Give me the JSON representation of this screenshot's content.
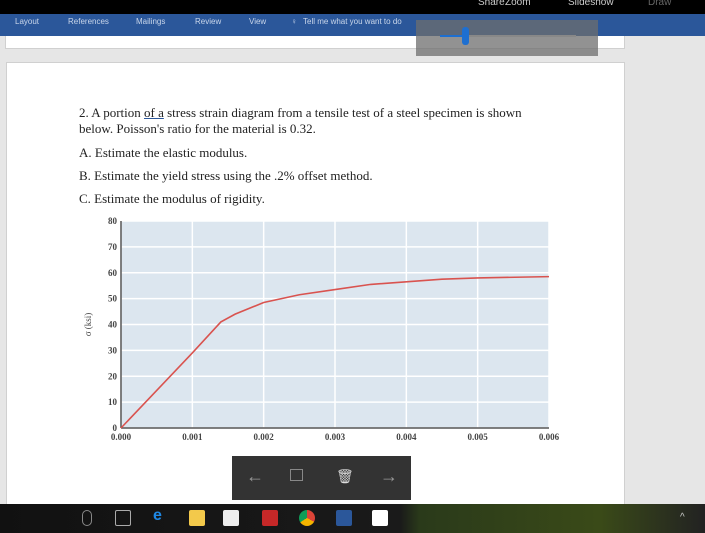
{
  "titlebar": {
    "share": "Share",
    "zoom": "Zoom",
    "slideshow": "Slideshow",
    "draw": "Draw"
  },
  "ribbon": {
    "tabs": [
      "Layout",
      "References",
      "Mailings",
      "Review",
      "View"
    ],
    "tell_me": "Tell me what you want to do"
  },
  "zoom_slider": {
    "value_fraction": 0.2
  },
  "document": {
    "q_pre": "2. A portion ",
    "q_u": "of  a",
    "q_post": " stress strain diagram from a tensile test of a steel specimen is shown",
    "q_line2": "below. Poisson's ratio for the material is 0.32.",
    "a": "A. Estimate the elastic modulus.",
    "b": "B. Estimate the yield stress using the .2% offset method.",
    "c": "C. Estimate the modulus of rigidity."
  },
  "chart_data": {
    "type": "line",
    "ylabel": "σ (ksi)",
    "xlim": [
      0,
      0.006
    ],
    "ylim": [
      0,
      80
    ],
    "xticks": [
      "0.000",
      "0.001",
      "0.002",
      "0.003",
      "0.004",
      "0.005",
      "0.006"
    ],
    "yticks": [
      "0",
      "10",
      "20",
      "30",
      "40",
      "50",
      "60",
      "70",
      "80"
    ],
    "grid": true,
    "line_color": "#d9534f",
    "background": "#dce6ef",
    "x": [
      0,
      0.001,
      0.0014,
      0.0016,
      0.002,
      0.0025,
      0.003,
      0.0035,
      0.004,
      0.0045,
      0.005,
      0.006
    ],
    "y": [
      0,
      29,
      41,
      44,
      48.5,
      51.5,
      53.5,
      55.5,
      56.5,
      57.5,
      58,
      58.5
    ]
  },
  "photo_toolbar": {
    "prev": "←",
    "next": "→",
    "icons": [
      "back-arrow-icon",
      "crop-icon",
      "trash-icon",
      "forward-arrow-icon"
    ]
  },
  "taskbar": {
    "icons": [
      "microphone-icon",
      "task-view-icon",
      "edge-icon",
      "file-explorer-icon",
      "store-icon",
      "reader-icon",
      "chrome-icon",
      "word-icon",
      "photos-icon"
    ]
  }
}
